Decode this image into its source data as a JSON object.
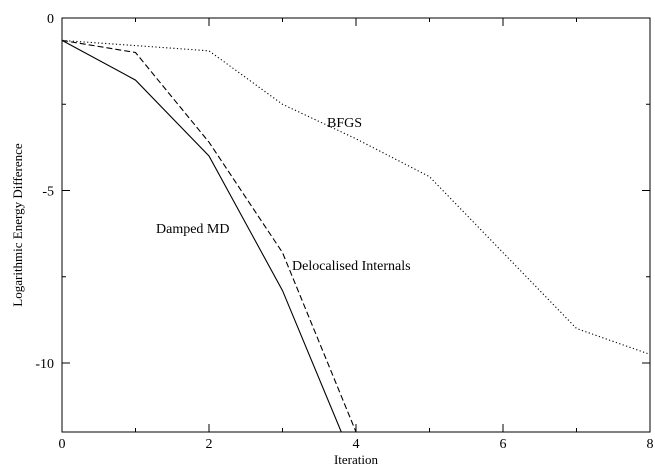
{
  "chart_data": {
    "type": "line",
    "xlabel": "Iteration",
    "ylabel": "Logarithmic Energy Difference",
    "xlim": [
      0,
      8
    ],
    "ylim": [
      -12,
      0
    ],
    "xticks": [
      0,
      2,
      4,
      6,
      8
    ],
    "yticks": [
      0,
      -5,
      -10
    ],
    "x_tick_labels": [
      "0",
      "2",
      "4",
      "6",
      "8"
    ],
    "y_tick_labels": [
      "0",
      "-5",
      "-10"
    ],
    "grid": false,
    "legend": "none",
    "series": [
      {
        "name": "Damped MD",
        "style": "solid",
        "points": [
          [
            0,
            -0.65
          ],
          [
            1,
            -1.8
          ],
          [
            2,
            -4.0
          ],
          [
            3,
            -7.9
          ],
          [
            3.8,
            -12
          ]
        ]
      },
      {
        "name": "Delocalised Internals",
        "style": "dashed",
        "points": [
          [
            0,
            -0.65
          ],
          [
            1,
            -1.0
          ],
          [
            2,
            -3.6
          ],
          [
            3,
            -6.8
          ],
          [
            4,
            -12
          ]
        ]
      },
      {
        "name": "BFGS",
        "style": "dotted",
        "points": [
          [
            0,
            -0.65
          ],
          [
            1,
            -0.8
          ],
          [
            2,
            -0.95
          ],
          [
            3,
            -2.5
          ],
          [
            4,
            -3.5
          ],
          [
            5,
            -4.6
          ],
          [
            6,
            -6.8
          ],
          [
            7,
            -9.0
          ],
          [
            8,
            -9.75
          ]
        ]
      }
    ]
  }
}
